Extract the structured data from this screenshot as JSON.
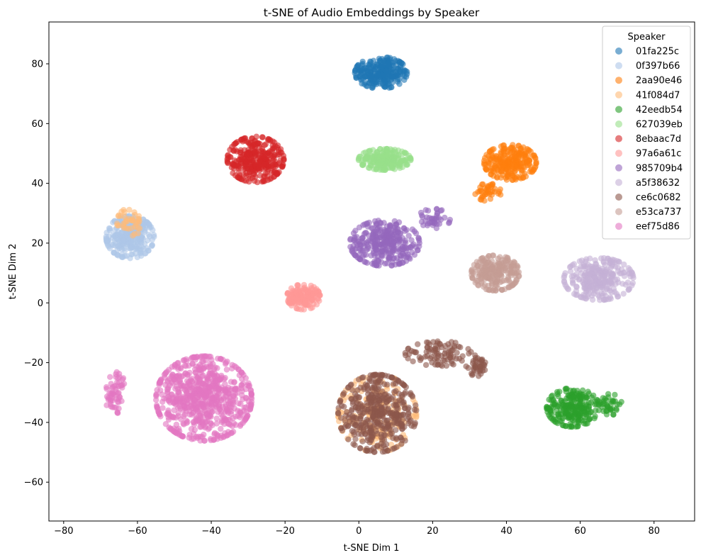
{
  "chart_data": {
    "type": "scatter",
    "title": "t-SNE of Audio Embeddings by Speaker",
    "xlabel": "t-SNE Dim 1",
    "ylabel": "t-SNE Dim 2",
    "xlim": [
      -84,
      91
    ],
    "ylim": [
      -73,
      94
    ],
    "xticks": [
      -80,
      -60,
      -40,
      -20,
      0,
      20,
      40,
      60,
      80
    ],
    "yticks": [
      -60,
      -40,
      -20,
      0,
      20,
      40,
      60,
      80
    ],
    "grid": false,
    "legend": {
      "title": "Speaker",
      "position": "top-right"
    },
    "series": [
      {
        "name": "01fa225c",
        "color": "#1f77b4",
        "clusters": [
          {
            "center": [
              6,
              77
            ],
            "spread": [
              6,
              4.5
            ],
            "count": 260
          }
        ]
      },
      {
        "name": "0f397b66",
        "color": "#aec7e8",
        "clusters": [
          {
            "center": [
              -62,
              22
            ],
            "spread": [
              5.5,
              6
            ],
            "count": 260
          }
        ]
      },
      {
        "name": "2aa90e46",
        "color": "#ff7f0e",
        "clusters": [
          {
            "center": [
              41,
              47
            ],
            "spread": [
              6,
              5
            ],
            "count": 240
          },
          {
            "center": [
              35,
              37
            ],
            "spread": [
              3,
              2.5
            ],
            "count": 40
          }
        ]
      },
      {
        "name": "41f084d7",
        "color": "#ffbb78",
        "clusters": [
          {
            "center": [
              5,
              -37
            ],
            "spread": [
              9,
              11
            ],
            "count": 180
          },
          {
            "center": [
              -62,
              27
            ],
            "spread": [
              3,
              4
            ],
            "count": 40
          }
        ]
      },
      {
        "name": "42eedb54",
        "color": "#2ca02c",
        "clusters": [
          {
            "center": [
              58,
              -35
            ],
            "spread": [
              6,
              5.5
            ],
            "count": 240
          },
          {
            "center": [
              68,
              -34
            ],
            "spread": [
              3,
              3
            ],
            "count": 40
          }
        ]
      },
      {
        "name": "627039eb",
        "color": "#98df8a",
        "clusters": [
          {
            "center": [
              7,
              48
            ],
            "spread": [
              6,
              3
            ],
            "count": 220
          }
        ]
      },
      {
        "name": "8ebaac7d",
        "color": "#d62728",
        "clusters": [
          {
            "center": [
              -28,
              48
            ],
            "spread": [
              6.5,
              6.5
            ],
            "count": 320
          }
        ]
      },
      {
        "name": "97a6a61c",
        "color": "#ff9896",
        "clusters": [
          {
            "center": [
              -15,
              2
            ],
            "spread": [
              3.8,
              3.6
            ],
            "count": 160
          }
        ]
      },
      {
        "name": "985709b4",
        "color": "#9467bd",
        "clusters": [
          {
            "center": [
              7,
              20
            ],
            "spread": [
              8,
              6.5
            ],
            "count": 320
          },
          {
            "center": [
              20,
              28
            ],
            "spread": [
              4,
              3
            ],
            "count": 40
          }
        ]
      },
      {
        "name": "a5f38632",
        "color": "#c5b0d5",
        "clusters": [
          {
            "center": [
              65,
              8
            ],
            "spread": [
              8,
              6
            ],
            "count": 280
          }
        ]
      },
      {
        "name": "ce6c0682",
        "color": "#8c564b",
        "clusters": [
          {
            "center": [
              5,
              -37
            ],
            "spread": [
              9,
              11
            ],
            "count": 420
          },
          {
            "center": [
              22,
              -17
            ],
            "spread": [
              8,
              3.5
            ],
            "count": 90
          },
          {
            "center": [
              32,
              -21
            ],
            "spread": [
              2.5,
              3
            ],
            "count": 40
          }
        ]
      },
      {
        "name": "e53ca737",
        "color": "#c49c94",
        "clusters": [
          {
            "center": [
              37,
              10
            ],
            "spread": [
              5.5,
              5
            ],
            "count": 220
          }
        ]
      },
      {
        "name": "eef75d86",
        "color": "#e377c2",
        "clusters": [
          {
            "center": [
              -42,
              -32
            ],
            "spread": [
              11,
              12
            ],
            "count": 720
          },
          {
            "center": [
              -66,
              -30
            ],
            "spread": [
              2.5,
              6
            ],
            "count": 60
          }
        ]
      }
    ]
  }
}
